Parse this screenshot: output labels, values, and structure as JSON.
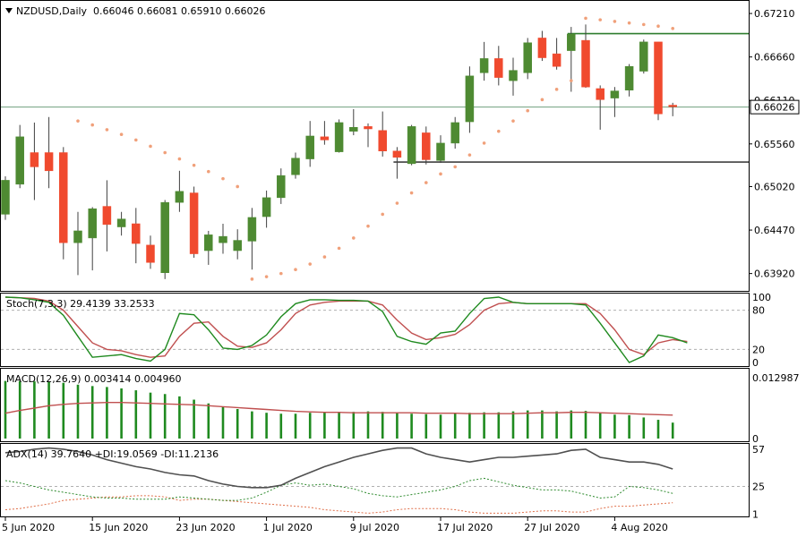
{
  "header": {
    "symbol": "NZDUSD,Daily",
    "ohlc": "0.66046 0.66081 0.65910 0.66026",
    "current_price_label": "0.66026"
  },
  "colors": {
    "bull": "#4e8a32",
    "bear": "#f04a2e",
    "wick": "#404040",
    "sar": "#f0a07a",
    "level_green": "#2e7d2e",
    "level_dark": "#404040",
    "price_line": "#6f9f7f",
    "stoch_main": "#1f8a1f",
    "stoch_signal": "#c05050",
    "macd_hist": "#1f8a1f",
    "macd_signal": "#c05050",
    "adx": "#505050",
    "plus_di": "#2e8b2e",
    "minus_di": "#e0704a"
  },
  "chart_data": {
    "type": "candlestick",
    "title": "NZDUSD,Daily",
    "x_tick_labels": [
      "5 Jun 2020",
      "15 Jun 2020",
      "23 Jun 2020",
      "1 Jul 2020",
      "9 Jul 2020",
      "17 Jul 2020",
      "27 Jul 2020",
      "4 Aug 2020"
    ],
    "x_tick_index": [
      0,
      6,
      12,
      18,
      24,
      30,
      36,
      42
    ],
    "ylim": [
      0.6378,
      0.6729
    ],
    "y_ticks": [
      0.6721,
      0.6666,
      0.6611,
      0.6556,
      0.6502,
      0.6447,
      0.6392
    ],
    "y_tick_labels": [
      "0.67210",
      "0.66660",
      "0.66110",
      "0.65560",
      "0.65020",
      "0.64470",
      "0.63920"
    ],
    "candles": [
      {
        "o": 0.6467,
        "h": 0.6515,
        "l": 0.646,
        "c": 0.651
      },
      {
        "o": 0.6505,
        "h": 0.658,
        "l": 0.65,
        "c": 0.6565
      },
      {
        "o": 0.6545,
        "h": 0.6583,
        "l": 0.6485,
        "c": 0.6527
      },
      {
        "o": 0.6545,
        "h": 0.659,
        "l": 0.65,
        "c": 0.6522
      },
      {
        "o": 0.6545,
        "h": 0.6552,
        "l": 0.641,
        "c": 0.6431
      },
      {
        "o": 0.6431,
        "h": 0.647,
        "l": 0.639,
        "c": 0.6446
      },
      {
        "o": 0.6437,
        "h": 0.6476,
        "l": 0.6396,
        "c": 0.6474
      },
      {
        "o": 0.6477,
        "h": 0.651,
        "l": 0.642,
        "c": 0.6454
      },
      {
        "o": 0.6451,
        "h": 0.647,
        "l": 0.644,
        "c": 0.6461
      },
      {
        "o": 0.6455,
        "h": 0.6475,
        "l": 0.6405,
        "c": 0.643
      },
      {
        "o": 0.6428,
        "h": 0.644,
        "l": 0.6398,
        "c": 0.6406
      },
      {
        "o": 0.6393,
        "h": 0.6485,
        "l": 0.6385,
        "c": 0.6482
      },
      {
        "o": 0.6482,
        "h": 0.6522,
        "l": 0.647,
        "c": 0.6496
      },
      {
        "o": 0.6494,
        "h": 0.6502,
        "l": 0.6412,
        "c": 0.6417
      },
      {
        "o": 0.6421,
        "h": 0.6446,
        "l": 0.6403,
        "c": 0.6441
      },
      {
        "o": 0.6431,
        "h": 0.6455,
        "l": 0.6417,
        "c": 0.6439
      },
      {
        "o": 0.6421,
        "h": 0.6448,
        "l": 0.641,
        "c": 0.6434
      },
      {
        "o": 0.6433,
        "h": 0.6475,
        "l": 0.6397,
        "c": 0.6463
      },
      {
        "o": 0.6464,
        "h": 0.6497,
        "l": 0.645,
        "c": 0.6488
      },
      {
        "o": 0.6488,
        "h": 0.6525,
        "l": 0.648,
        "c": 0.6516
      },
      {
        "o": 0.6517,
        "h": 0.6545,
        "l": 0.6512,
        "c": 0.6538
      },
      {
        "o": 0.6537,
        "h": 0.6585,
        "l": 0.6527,
        "c": 0.6566
      },
      {
        "o": 0.6565,
        "h": 0.6585,
        "l": 0.6555,
        "c": 0.6561
      },
      {
        "o": 0.6546,
        "h": 0.6587,
        "l": 0.6545,
        "c": 0.6583
      },
      {
        "o": 0.6572,
        "h": 0.66,
        "l": 0.6567,
        "c": 0.6577
      },
      {
        "o": 0.6578,
        "h": 0.6582,
        "l": 0.6552,
        "c": 0.6575
      },
      {
        "o": 0.6573,
        "h": 0.6597,
        "l": 0.654,
        "c": 0.6547
      },
      {
        "o": 0.6547,
        "h": 0.6552,
        "l": 0.6512,
        "c": 0.6539
      },
      {
        "o": 0.6531,
        "h": 0.658,
        "l": 0.6529,
        "c": 0.6578
      },
      {
        "o": 0.657,
        "h": 0.6578,
        "l": 0.653,
        "c": 0.6536
      },
      {
        "o": 0.6535,
        "h": 0.6567,
        "l": 0.6532,
        "c": 0.6557
      },
      {
        "o": 0.6557,
        "h": 0.659,
        "l": 0.655,
        "c": 0.6583
      },
      {
        "o": 0.6584,
        "h": 0.6654,
        "l": 0.657,
        "c": 0.6642
      },
      {
        "o": 0.6646,
        "h": 0.6685,
        "l": 0.6636,
        "c": 0.6664
      },
      {
        "o": 0.6664,
        "h": 0.668,
        "l": 0.663,
        "c": 0.664
      },
      {
        "o": 0.6636,
        "h": 0.6665,
        "l": 0.6617,
        "c": 0.6649
      },
      {
        "o": 0.6646,
        "h": 0.669,
        "l": 0.6638,
        "c": 0.6684
      },
      {
        "o": 0.669,
        "h": 0.6699,
        "l": 0.6661,
        "c": 0.6665
      },
      {
        "o": 0.667,
        "h": 0.669,
        "l": 0.665,
        "c": 0.6654
      },
      {
        "o": 0.6674,
        "h": 0.6704,
        "l": 0.6622,
        "c": 0.6695
      },
      {
        "o": 0.6687,
        "h": 0.6707,
        "l": 0.6627,
        "c": 0.6628
      },
      {
        "o": 0.6626,
        "h": 0.663,
        "l": 0.6574,
        "c": 0.6612
      },
      {
        "o": 0.6614,
        "h": 0.6628,
        "l": 0.659,
        "c": 0.6623
      },
      {
        "o": 0.6624,
        "h": 0.6657,
        "l": 0.6616,
        "c": 0.6654
      },
      {
        "o": 0.6648,
        "h": 0.6688,
        "l": 0.6645,
        "c": 0.6685
      },
      {
        "o": 0.6685,
        "h": 0.6685,
        "l": 0.6586,
        "c": 0.6594
      },
      {
        "o": 0.6605,
        "h": 0.6608,
        "l": 0.6591,
        "c": 0.6603
      }
    ],
    "parabolic_sar": [
      null,
      null,
      null,
      null,
      null,
      0.6585,
      0.658,
      0.6574,
      0.6568,
      0.6561,
      0.6553,
      0.6545,
      0.6537,
      0.6529,
      0.6521,
      0.6512,
      0.6502,
      0.6385,
      0.6388,
      0.6392,
      0.6397,
      0.6404,
      0.6413,
      0.6424,
      0.6437,
      0.6452,
      0.6467,
      0.6481,
      0.6494,
      0.6507,
      0.6518,
      0.6527,
      0.6542,
      0.6557,
      0.6572,
      0.6585,
      0.6598,
      0.6612,
      0.6625,
      0.6636,
      0.6715,
      0.6713,
      0.6711,
      0.6709,
      0.6707,
      0.6705,
      0.6702
    ],
    "horizontal_levels": [
      {
        "value": 0.66955,
        "from_index": 39,
        "color_key": "level_green"
      },
      {
        "value": 0.6533,
        "from_index": 27,
        "color_key": "level_dark"
      },
      {
        "value": 0.66026,
        "from_index": 0,
        "color_key": "price_line"
      }
    ],
    "stochastic": {
      "label": "Stoch(7,3,3) 29.4139 33.2533",
      "ylim": [
        0,
        100
      ],
      "y_ticks": [
        100,
        80,
        20,
        0
      ],
      "levels": [
        80,
        20
      ],
      "k": [
        100,
        99,
        96,
        92,
        72,
        40,
        8,
        10,
        12,
        6,
        2,
        20,
        75,
        73,
        50,
        22,
        20,
        26,
        42,
        70,
        90,
        96,
        96,
        95,
        95,
        94,
        78,
        40,
        32,
        28,
        45,
        48,
        75,
        98,
        100,
        92,
        90,
        90,
        90,
        90,
        88,
        60,
        30,
        0,
        10,
        42,
        38,
        30
      ],
      "d": [
        100,
        99,
        98,
        94,
        80,
        55,
        30,
        20,
        18,
        12,
        8,
        10,
        40,
        60,
        62,
        40,
        25,
        23,
        30,
        50,
        75,
        88,
        92,
        94,
        94,
        94,
        88,
        65,
        45,
        35,
        38,
        43,
        58,
        80,
        90,
        92,
        90,
        90,
        90,
        90,
        90,
        75,
        50,
        20,
        12,
        30,
        35,
        32
      ]
    },
    "macd": {
      "label": "MACD(12,26,9) 0.003414 0.004960",
      "ylim": [
        0,
        0.012987
      ],
      "y_ticks": [
        0.012987,
        0
      ],
      "y_tick_labels": [
        "0.012987",
        "0"
      ],
      "histogram": [
        0.0123,
        0.0123,
        0.0122,
        0.0122,
        0.0119,
        0.0115,
        0.0112,
        0.011,
        0.0107,
        0.0103,
        0.0098,
        0.0095,
        0.009,
        0.0083,
        0.0075,
        0.0068,
        0.0063,
        0.0058,
        0.0055,
        0.0053,
        0.0053,
        0.0055,
        0.0056,
        0.0057,
        0.0057,
        0.0058,
        0.0057,
        0.0055,
        0.0053,
        0.0052,
        0.0051,
        0.0054,
        0.0055,
        0.0056,
        0.0056,
        0.0058,
        0.006,
        0.006,
        0.0058,
        0.006,
        0.0059,
        0.0056,
        0.0051,
        0.005,
        0.0045,
        0.004,
        0.0034
      ],
      "signal": [
        0.0054,
        0.006,
        0.0065,
        0.007,
        0.0073,
        0.0075,
        0.0076,
        0.0077,
        0.0077,
        0.0076,
        0.0075,
        0.0074,
        0.0073,
        0.0072,
        0.007,
        0.0068,
        0.0066,
        0.0064,
        0.0062,
        0.006,
        0.0058,
        0.0057,
        0.0056,
        0.0056,
        0.0055,
        0.0055,
        0.0055,
        0.0055,
        0.0055,
        0.0054,
        0.0054,
        0.0054,
        0.0053,
        0.0053,
        0.0053,
        0.0053,
        0.0054,
        0.0055,
        0.0055,
        0.0056,
        0.0056,
        0.0055,
        0.0054,
        0.0053,
        0.0052,
        0.0051,
        0.005
      ]
    },
    "adx": {
      "label": "ADX(14) 39.7640 +DI:19.0569 -DI:11.2136",
      "ylim": [
        0,
        60
      ],
      "y_ticks": [
        57,
        25,
        1
      ],
      "levels": [
        25
      ],
      "adx": [
        54,
        55,
        57,
        58,
        57,
        55,
        52,
        48,
        45,
        42,
        40,
        37,
        35,
        34,
        30,
        27,
        25,
        24,
        24,
        26,
        32,
        37,
        42,
        46,
        50,
        53,
        56,
        58,
        58,
        53,
        50,
        48,
        46,
        48,
        50,
        50,
        51,
        52,
        53,
        56,
        57,
        50,
        48,
        46,
        46,
        44,
        40
      ],
      "plus_di": [
        30,
        28,
        25,
        22,
        20,
        18,
        16,
        15,
        15,
        14,
        14,
        14,
        16,
        15,
        14,
        13,
        13,
        15,
        20,
        26,
        28,
        26,
        27,
        25,
        23,
        19,
        17,
        16,
        18,
        20,
        22,
        25,
        30,
        32,
        29,
        26,
        24,
        22,
        22,
        21,
        18,
        15,
        16,
        25,
        24,
        22,
        19
      ],
      "minus_di": [
        5,
        6,
        8,
        10,
        13,
        14,
        15,
        16,
        16,
        17,
        17,
        16,
        13,
        14,
        14,
        13,
        12,
        11,
        10,
        9,
        8,
        7,
        5,
        4,
        3,
        2,
        3,
        5,
        6,
        6,
        6,
        5,
        3,
        2,
        2,
        2,
        3,
        4,
        4,
        3,
        3,
        6,
        8,
        8,
        9,
        10,
        11
      ]
    }
  }
}
